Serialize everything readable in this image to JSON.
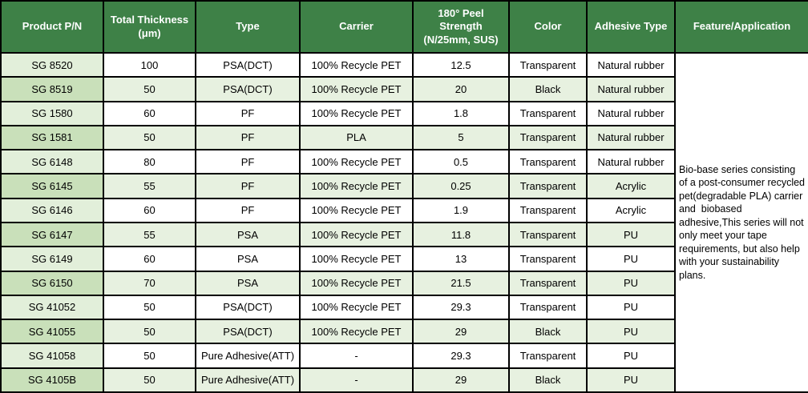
{
  "colors": {
    "header_bg": "#3E8147",
    "header_text": "#FFFFFF",
    "body_text": "#000000",
    "border": "#000000",
    "row_even_bg": "#E7F1E0",
    "col1_odd_bg": "#E2EFDA",
    "col1_even_bg": "#C9E0BA"
  },
  "table": {
    "columns": [
      {
        "id": "product-pn",
        "label": "Product P/N"
      },
      {
        "id": "total-thickness",
        "label": "Total Thickness\n(μm)"
      },
      {
        "id": "type",
        "label": "Type"
      },
      {
        "id": "carrier",
        "label": "Carrier"
      },
      {
        "id": "peel-strength",
        "label": "180° Peel\nStrength\n(N/25mm, SUS)"
      },
      {
        "id": "color",
        "label": "Color"
      },
      {
        "id": "adhesive-type",
        "label": "Adhesive Type"
      },
      {
        "id": "feature-application",
        "label": "Feature/Application"
      }
    ],
    "rows": [
      {
        "product_pn": "SG 8520",
        "total_thickness_um": "100",
        "type": "PSA(DCT)",
        "carrier": "100% Recycle PET",
        "peel_strength_n_25mm_sus": "12.5",
        "color": "Transparent",
        "adhesive_type": "Natural rubber"
      },
      {
        "product_pn": "SG 8519",
        "total_thickness_um": "50",
        "type": "PSA(DCT)",
        "carrier": "100% Recycle PET",
        "peel_strength_n_25mm_sus": "20",
        "color": "Black",
        "adhesive_type": "Natural rubber"
      },
      {
        "product_pn": "SG 1580",
        "total_thickness_um": "60",
        "type": "PF",
        "carrier": "100% Recycle PET",
        "peel_strength_n_25mm_sus": "1.8",
        "color": "Transparent",
        "adhesive_type": "Natural rubber"
      },
      {
        "product_pn": "SG 1581",
        "total_thickness_um": "50",
        "type": "PF",
        "carrier": "PLA",
        "peel_strength_n_25mm_sus": "5",
        "color": "Transparent",
        "adhesive_type": "Natural rubber"
      },
      {
        "product_pn": "SG 6148",
        "total_thickness_um": "80",
        "type": "PF",
        "carrier": "100% Recycle PET",
        "peel_strength_n_25mm_sus": "0.5",
        "color": "Transparent",
        "adhesive_type": "Natural rubber"
      },
      {
        "product_pn": "SG 6145",
        "total_thickness_um": "55",
        "type": "PF",
        "carrier": "100% Recycle PET",
        "peel_strength_n_25mm_sus": "0.25",
        "color": "Transparent",
        "adhesive_type": "Acrylic"
      },
      {
        "product_pn": "SG 6146",
        "total_thickness_um": "60",
        "type": "PF",
        "carrier": "100% Recycle PET",
        "peel_strength_n_25mm_sus": "1.9",
        "color": "Transparent",
        "adhesive_type": "Acrylic"
      },
      {
        "product_pn": "SG 6147",
        "total_thickness_um": "55",
        "type": "PSA",
        "carrier": "100% Recycle PET",
        "peel_strength_n_25mm_sus": "11.8",
        "color": "Transparent",
        "adhesive_type": "PU"
      },
      {
        "product_pn": "SG 6149",
        "total_thickness_um": "60",
        "type": "PSA",
        "carrier": "100% Recycle PET",
        "peel_strength_n_25mm_sus": "13",
        "color": "Transparent",
        "adhesive_type": "PU"
      },
      {
        "product_pn": "SG 6150",
        "total_thickness_um": "70",
        "type": "PSA",
        "carrier": "100% Recycle PET",
        "peel_strength_n_25mm_sus": "21.5",
        "color": "Transparent",
        "adhesive_type": "PU"
      },
      {
        "product_pn": "SG 41052",
        "total_thickness_um": "50",
        "type": "PSA(DCT)",
        "carrier": "100% Recycle PET",
        "peel_strength_n_25mm_sus": "29.3",
        "color": "Transparent",
        "adhesive_type": "PU"
      },
      {
        "product_pn": "SG 41055",
        "total_thickness_um": "50",
        "type": "PSA(DCT)",
        "carrier": "100% Recycle PET",
        "peel_strength_n_25mm_sus": "29",
        "color": "Black",
        "adhesive_type": "PU"
      },
      {
        "product_pn": "SG 41058",
        "total_thickness_um": "50",
        "type": "Pure Adhesive(ATT)",
        "carrier": "-",
        "peel_strength_n_25mm_sus": "29.3",
        "color": "Transparent",
        "adhesive_type": "PU"
      },
      {
        "product_pn": "SG 4105B",
        "total_thickness_um": "50",
        "type": "Pure Adhesive(ATT)",
        "carrier": "-",
        "peel_strength_n_25mm_sus": "29",
        "color": "Black",
        "adhesive_type": "PU"
      }
    ],
    "feature_application": "Bio-base series consisting of a post-consumer recycled pet(degradable PLA) carrier and  biobased adhesive,This series will not only meet your tape requirements, but also help with your sustainability plans."
  }
}
